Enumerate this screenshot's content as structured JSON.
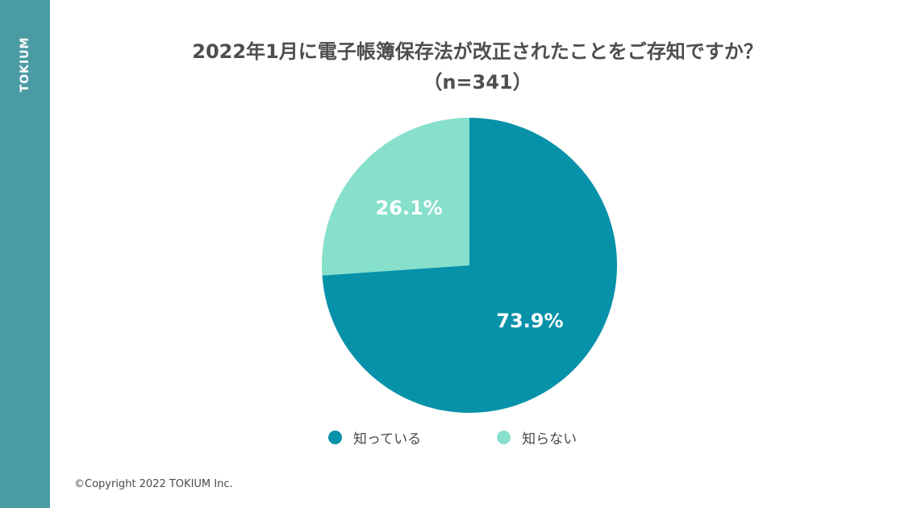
{
  "brand": "TOKIUM",
  "chart_data": {
    "type": "pie",
    "title": "2022年1月に電子帳簿保存法が改正されたことをご存知ですか？",
    "subtitle": "（n=341）",
    "series": [
      {
        "name": "知っている",
        "value": 73.9,
        "label": "73.9%",
        "color": "#0792a9"
      },
      {
        "name": "知らない",
        "value": 26.1,
        "label": "26.1%",
        "color": "#86e0cc"
      }
    ],
    "legend_position": "bottom"
  },
  "footer": {
    "copyright": "©Copyright 2022 TOKIUM Inc."
  },
  "colors": {
    "sidebar": "#4b9ba5"
  }
}
